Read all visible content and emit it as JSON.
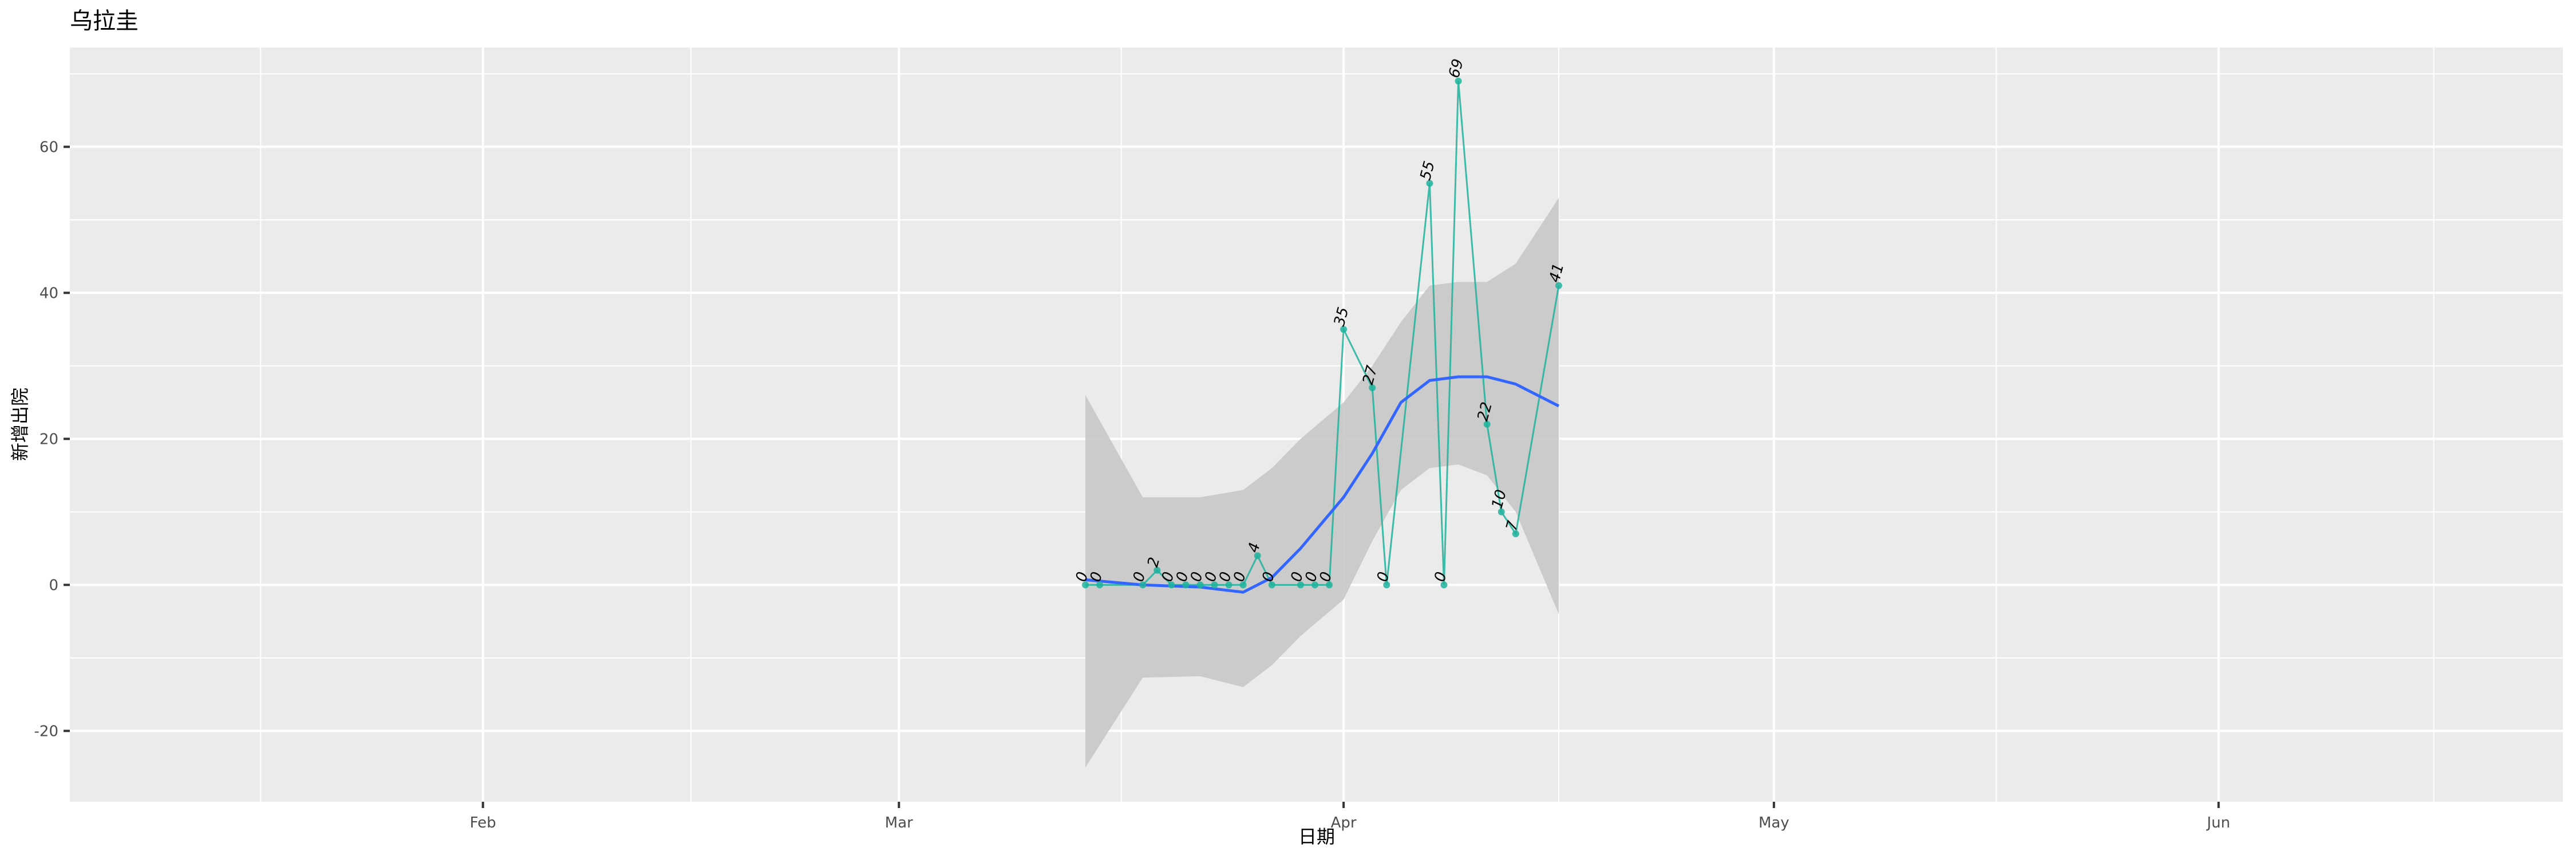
{
  "chart_data": {
    "type": "line",
    "title": "乌拉圭",
    "xlabel": "日期",
    "ylabel": "新增出院",
    "x_ticks": [
      "Feb",
      "Mar",
      "Apr",
      "May",
      "Jun"
    ],
    "y_ticks": [
      -20,
      0,
      20,
      40,
      60
    ],
    "xlim": [
      "01-03",
      "06-25"
    ],
    "ylim": [
      -29.7,
      73.6
    ],
    "grid": true,
    "legend": "none",
    "series": [
      {
        "x": [
          "03-14",
          "03-15",
          "03-18",
          "03-19",
          "03-20",
          "03-21",
          "03-22",
          "03-23",
          "03-24",
          "03-25",
          "03-26",
          "03-27",
          "03-29",
          "03-30",
          "03-31",
          "04-01",
          "04-03",
          "04-04",
          "04-07",
          "04-08",
          "04-09",
          "04-11",
          "04-12",
          "04-13",
          "04-16"
        ],
        "values": [
          0,
          0,
          0,
          2,
          0,
          0,
          0,
          0,
          0,
          0,
          4,
          0,
          0,
          0,
          0,
          35,
          27,
          0,
          55,
          0,
          69,
          22,
          10,
          7,
          41
        ],
        "color": "#1fb39c"
      }
    ],
    "smooth": {
      "x": [
        "03-14",
        "03-18",
        "03-22",
        "03-25",
        "03-27",
        "03-29",
        "04-01",
        "04-03",
        "04-05",
        "04-07",
        "04-09",
        "04-11",
        "04-13",
        "04-16"
      ],
      "values": [
        0.7,
        0,
        -0.3,
        -1,
        1,
        5,
        12,
        18,
        25,
        28,
        28.5,
        28.5,
        27.5,
        24.5
      ],
      "upper": [
        26,
        12,
        12,
        13,
        16,
        20,
        25,
        30,
        36,
        41,
        41.5,
        41.5,
        44,
        53
      ],
      "lower": [
        -25,
        -12.7,
        -12.5,
        -14,
        -11,
        -7,
        -2,
        6,
        13,
        16,
        16.5,
        15,
        10,
        -4
      ],
      "color": "#3366ff",
      "ribbon_color": "#c8c8c8"
    }
  }
}
